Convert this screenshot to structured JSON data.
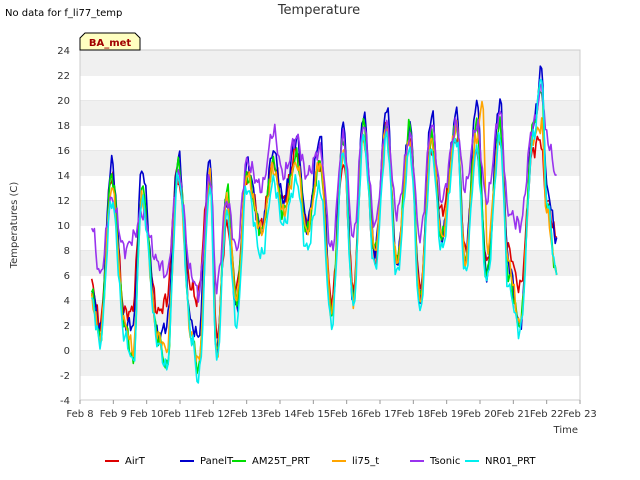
{
  "no_data_message": "No data for f_li77_temp",
  "badge_label": "BA_met",
  "chart_data": {
    "type": "line",
    "title": "Temperature",
    "xlabel": "Time",
    "ylabel": "Temperatures (C)",
    "xlim": [
      8,
      23
    ],
    "ylim": [
      -4,
      24
    ],
    "yticks": [
      -4,
      -2,
      0,
      2,
      4,
      6,
      8,
      10,
      12,
      14,
      16,
      18,
      20,
      22,
      24
    ],
    "xticks": [
      8,
      9,
      10,
      11,
      12,
      13,
      14,
      15,
      16,
      17,
      18,
      19,
      20,
      21,
      22,
      23
    ],
    "xtick_labels": [
      "Feb 8",
      "Feb 9",
      "Feb 10",
      "Feb 11",
      "Feb 12",
      "Feb 13",
      "Feb 14",
      "Feb 15",
      "Feb 16",
      "Feb 17",
      "Feb 18",
      "Feb 19",
      "Feb 20",
      "Feb 21",
      "Feb 22",
      "Feb 23"
    ],
    "grid": "horizontal bands",
    "legend_position": "bottom",
    "series": [
      {
        "name": "AirT",
        "color": "#dd0000",
        "x": [
          8.35,
          8.6,
          8.95,
          9.35,
          9.55,
          9.85,
          10.35,
          10.6,
          10.9,
          11.35,
          11.5,
          11.9,
          12.1,
          12.4,
          12.7,
          13.0,
          13.45,
          13.8,
          14.1,
          14.5,
          14.8,
          15.2,
          15.55,
          15.9,
          16.2,
          16.5,
          16.85,
          17.2,
          17.5,
          17.9,
          18.2,
          18.55,
          18.85,
          19.3,
          19.55,
          19.9,
          20.2,
          20.6,
          20.85,
          21.2,
          21.6,
          21.8,
          22.0,
          22.3
        ],
        "y": [
          5.5,
          2,
          14,
          3,
          3,
          12,
          3,
          4,
          14,
          5,
          4,
          14,
          1,
          10,
          5,
          14,
          10,
          15,
          12,
          16,
          10,
          15,
          4,
          15,
          5,
          17,
          7,
          18,
          7,
          17,
          5,
          16,
          11,
          17,
          8,
          16,
          7,
          17,
          8,
          5,
          16,
          17,
          12,
          9
        ]
      },
      {
        "name": "PanelT",
        "color": "#0000cc",
        "x": [
          8.35,
          8.6,
          8.95,
          9.35,
          9.6,
          9.85,
          10.35,
          10.6,
          10.95,
          11.35,
          11.55,
          11.9,
          12.1,
          12.4,
          12.7,
          13.0,
          13.45,
          13.8,
          14.1,
          14.5,
          14.8,
          15.2,
          15.55,
          15.9,
          16.2,
          16.5,
          16.85,
          17.2,
          17.5,
          17.9,
          18.2,
          18.55,
          18.85,
          19.3,
          19.55,
          19.9,
          20.2,
          20.6,
          20.85,
          21.2,
          21.6,
          21.85,
          22.0,
          22.3
        ],
        "y": [
          5,
          1.5,
          15,
          2,
          2,
          14.5,
          1,
          2,
          15.5,
          2,
          1,
          15.5,
          0,
          12,
          3,
          15,
          9.5,
          16,
          12,
          17,
          10,
          17,
          3,
          18,
          4,
          19,
          8,
          19.5,
          7,
          18,
          4,
          19,
          9,
          19,
          7,
          20,
          6,
          20,
          7,
          2,
          18,
          22.5,
          13,
          9
        ]
      },
      {
        "name": "AM25T_PRT",
        "color": "#00dd00",
        "x": [
          8.35,
          8.6,
          8.95,
          9.35,
          9.6,
          9.85,
          10.35,
          10.6,
          10.95,
          11.35,
          11.55,
          11.9,
          12.1,
          12.4,
          12.7,
          13.0,
          13.45,
          13.8,
          14.1,
          14.5,
          14.8,
          15.2,
          15.55,
          15.9,
          16.2,
          16.5,
          16.85,
          17.2,
          17.5,
          17.9,
          18.2,
          18.55,
          18.85,
          19.3,
          19.55,
          19.9,
          20.2,
          20.6,
          20.85,
          21.2,
          21.6,
          21.85,
          22.0,
          22.3
        ],
        "y": [
          4.5,
          1,
          14,
          2,
          -1,
          13,
          1,
          -1.5,
          15,
          1,
          -1.5,
          14,
          -0.5,
          13,
          4,
          14,
          9.5,
          15,
          11,
          15.5,
          9.5,
          15,
          3,
          17,
          4,
          18,
          8,
          18,
          7,
          18,
          4,
          17,
          9,
          18,
          7,
          18,
          6,
          18,
          6,
          2,
          18,
          21,
          12,
          6
        ]
      },
      {
        "name": "li75_t",
        "color": "#ffa500",
        "x": [
          8.35,
          8.6,
          8.95,
          9.35,
          9.6,
          9.85,
          10.35,
          10.6,
          10.95,
          11.35,
          11.55,
          11.9,
          12.1,
          12.4,
          12.7,
          13.0,
          13.45,
          13.8,
          14.1,
          14.5,
          14.8,
          15.2,
          15.55,
          15.9,
          16.2,
          16.5,
          16.85,
          17.2,
          17.5,
          17.9,
          18.2,
          18.55,
          18.85,
          19.3,
          19.55,
          19.9,
          20.1,
          20.2,
          20.6,
          20.85,
          21.2,
          21.6,
          21.85,
          22.0,
          22.3
        ],
        "y": [
          4,
          1,
          13,
          2,
          0,
          12,
          1,
          0,
          14,
          1,
          -1,
          14,
          -0.5,
          12,
          4,
          14,
          9.5,
          14.5,
          11,
          15,
          9.5,
          15,
          3,
          16,
          4,
          17,
          8,
          18,
          7,
          17,
          4,
          17,
          9,
          18,
          7,
          17,
          20,
          8,
          17,
          7,
          2,
          17,
          18,
          11,
          6
        ]
      },
      {
        "name": "Tsonic",
        "color": "#9933ee",
        "x": [
          8.35,
          8.6,
          8.95,
          9.35,
          9.6,
          9.85,
          10.35,
          10.6,
          10.95,
          11.35,
          11.55,
          11.9,
          12.1,
          12.4,
          12.7,
          13.0,
          13.45,
          13.8,
          14.1,
          14.5,
          14.8,
          15.2,
          15.55,
          15.9,
          16.2,
          16.5,
          16.85,
          17.2,
          17.5,
          17.9,
          18.2,
          18.55,
          18.85,
          19.3,
          19.55,
          19.9,
          20.2,
          20.6,
          20.85,
          21.2,
          21.6,
          21.85,
          22.0,
          22.3
        ],
        "y": [
          10,
          6,
          12,
          8,
          9,
          11,
          7,
          6,
          14,
          6,
          4.5,
          14,
          5,
          12,
          8,
          15,
          13,
          17.5,
          14,
          17,
          14,
          16,
          8,
          17,
          9,
          18,
          10,
          18,
          11,
          17,
          9,
          18,
          12,
          18,
          13,
          18,
          12,
          19,
          11,
          10,
          18,
          21,
          17,
          14
        ]
      },
      {
        "name": "NR01_PRT",
        "color": "#00eeee",
        "x": [
          8.35,
          8.6,
          8.95,
          9.35,
          9.6,
          9.85,
          10.35,
          10.6,
          10.95,
          11.35,
          11.55,
          11.9,
          12.1,
          12.4,
          12.7,
          13.0,
          13.45,
          13.8,
          14.1,
          14.5,
          14.8,
          15.2,
          15.55,
          15.9,
          16.2,
          16.5,
          16.85,
          17.2,
          17.5,
          17.9,
          18.2,
          18.55,
          18.85,
          19.3,
          19.55,
          19.9,
          20.2,
          20.6,
          20.85,
          21.2,
          21.6,
          21.85,
          22.0,
          22.3
        ],
        "y": [
          4,
          0.5,
          12,
          1,
          -1,
          12,
          0.5,
          -1.5,
          14,
          1,
          -2.5,
          13,
          -1,
          11,
          2,
          13,
          7.5,
          13.5,
          10,
          13.5,
          8,
          13,
          2,
          16,
          3.5,
          17,
          6.5,
          17,
          6,
          16,
          3,
          16,
          8,
          17,
          6,
          16,
          5.5,
          17,
          5,
          1.5,
          17,
          22,
          12,
          6
        ]
      }
    ]
  }
}
